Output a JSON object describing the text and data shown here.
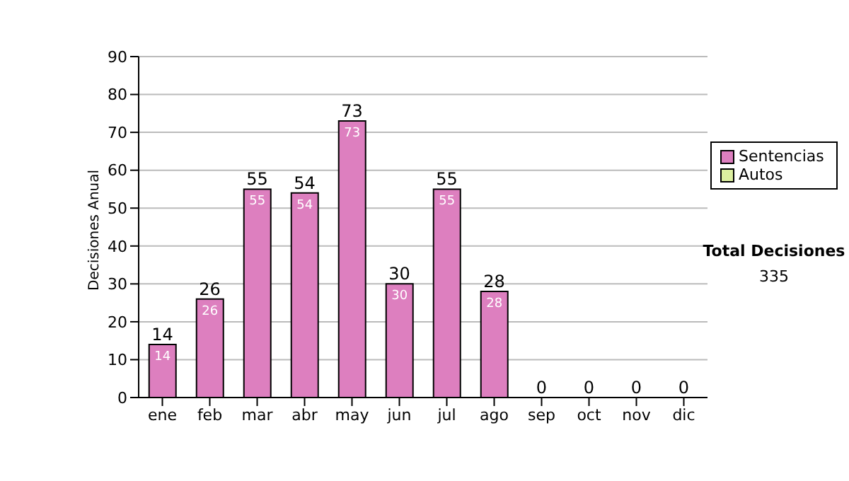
{
  "chart_data": {
    "type": "bar",
    "stacked": true,
    "ylabel": "Decisiones Anual",
    "categories": [
      "ene",
      "feb",
      "mar",
      "abr",
      "may",
      "jun",
      "jul",
      "ago",
      "sep",
      "oct",
      "nov",
      "dic"
    ],
    "series": [
      {
        "name": "Sentencias",
        "color": "#dd7fbf",
        "values": [
          14,
          26,
          55,
          54,
          73,
          30,
          55,
          28,
          0,
          0,
          0,
          0
        ],
        "value_labels": [
          "14",
          "26",
          "55",
          "54",
          "73",
          "30",
          "55",
          "28",
          null,
          null,
          null,
          null
        ]
      },
      {
        "name": "Autos",
        "color": "#dcefa0",
        "values": [
          0,
          0,
          0,
          0,
          0,
          0,
          0,
          0,
          0,
          0,
          0,
          0
        ]
      }
    ],
    "totals": [
      "14",
      "26",
      "55",
      "54",
      "73",
      "30",
      "55",
      "28",
      "0",
      "0",
      "0",
      "0"
    ],
    "ylim": [
      0,
      90
    ],
    "yticks": [
      0,
      10,
      20,
      30,
      40,
      50,
      60,
      70,
      80,
      90
    ],
    "grid": "y",
    "legend": "right",
    "annotations": [
      "Total Decisiones",
      "335"
    ]
  }
}
